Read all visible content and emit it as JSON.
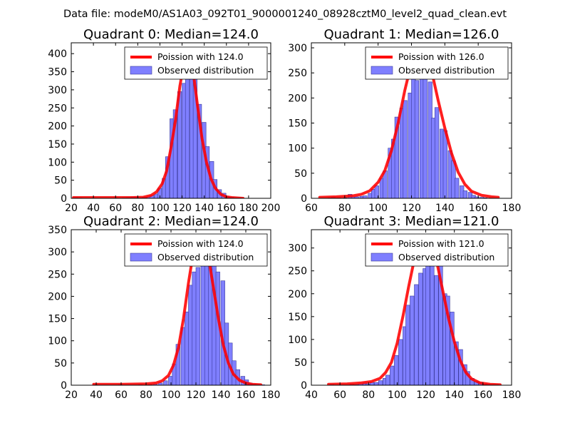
{
  "figure": {
    "suptitle": "Data file: modeM0/AS1A03_092T01_9000001240_08928cztM0_level2_quad_clean.evt"
  },
  "colors": {
    "bar_fill": "#7f7fff",
    "bar_edge": "#3a3a99",
    "fit_line": "#ff0000"
  },
  "chart_data": [
    {
      "type": "bar",
      "title": "Quadrant 0: Median=124.0",
      "legend": {
        "position": "upper-right",
        "entries": [
          "Poission with 124.0",
          "Observed distribution"
        ]
      },
      "xlim": [
        20,
        200
      ],
      "ylim": [
        0,
        430
      ],
      "xticks": [
        20,
        40,
        60,
        80,
        100,
        120,
        140,
        160,
        180,
        200
      ],
      "yticks": [
        0,
        50,
        100,
        150,
        200,
        250,
        300,
        350,
        400
      ],
      "bin_width": 3.6,
      "bins_x": [
        22,
        26,
        30,
        34,
        38,
        42,
        46,
        50,
        54,
        58,
        62,
        66,
        70,
        74,
        77,
        80,
        84,
        88,
        91,
        95,
        98,
        102,
        105,
        109,
        112,
        116,
        120,
        123,
        127,
        130,
        134,
        138,
        141,
        145,
        148,
        152,
        156,
        159,
        163,
        166,
        170
      ],
      "bins_y": [
        2,
        1,
        0,
        0,
        0,
        0,
        0,
        0,
        0,
        1,
        0,
        1,
        2,
        4,
        4,
        1,
        3,
        4,
        8,
        12,
        28,
        55,
        115,
        220,
        245,
        295,
        318,
        405,
        360,
        336,
        260,
        210,
        143,
        102,
        52,
        24,
        14,
        6,
        3,
        1,
        1
      ],
      "fit_x": [
        22,
        40,
        60,
        75,
        85,
        92,
        97,
        102,
        106,
        110,
        114,
        118,
        122,
        124,
        127,
        130,
        134,
        138,
        142,
        146,
        150,
        155,
        160,
        165,
        170,
        175
      ],
      "fit_y": [
        2,
        2,
        2,
        2,
        3,
        8,
        18,
        40,
        75,
        140,
        215,
        310,
        380,
        395,
        385,
        350,
        255,
        165,
        100,
        55,
        28,
        11,
        4,
        2,
        1,
        0
      ],
      "bars_edge_shift": 1
    },
    {
      "type": "bar",
      "title": "Quadrant 1: Median=126.0",
      "legend": {
        "position": "upper-right",
        "entries": [
          "Poission with 126.0",
          "Observed distribution"
        ]
      },
      "xlim": [
        60,
        180
      ],
      "ylim": [
        0,
        310
      ],
      "xticks": [
        60,
        80,
        100,
        120,
        140,
        160,
        180
      ],
      "yticks": [
        0,
        50,
        100,
        150,
        200,
        250,
        300
      ],
      "bin_width": 2.4,
      "bins_x": [
        65,
        67,
        70,
        72,
        75,
        77,
        79,
        82,
        84,
        86,
        89,
        91,
        94,
        96,
        98,
        101,
        103,
        106,
        108,
        110,
        113,
        115,
        118,
        120,
        122,
        125,
        127,
        130,
        132,
        134,
        137,
        139,
        142,
        144,
        146,
        149,
        151,
        154,
        156,
        158,
        161,
        163,
        166,
        168
      ],
      "bins_y": [
        0,
        0,
        1,
        2,
        1,
        0,
        1,
        8,
        3,
        3,
        4,
        5,
        10,
        18,
        25,
        40,
        55,
        100,
        118,
        162,
        180,
        195,
        210,
        272,
        235,
        240,
        300,
        232,
        160,
        181,
        138,
        135,
        95,
        75,
        40,
        25,
        15,
        12,
        6,
        3,
        2,
        1,
        0,
        0
      ],
      "fit_x": [
        65,
        75,
        85,
        90,
        95,
        100,
        104,
        108,
        112,
        116,
        120,
        124,
        126,
        128,
        132,
        136,
        140,
        144,
        148,
        152,
        156,
        162,
        168,
        172
      ],
      "fit_y": [
        2,
        3,
        5,
        8,
        15,
        32,
        55,
        95,
        150,
        215,
        270,
        295,
        298,
        295,
        255,
        195,
        140,
        90,
        52,
        28,
        14,
        6,
        3,
        2
      ],
      "bars_edge_shift": 1
    },
    {
      "type": "bar",
      "title": "Quadrant 2: Median=124.0",
      "legend": {
        "position": "upper-right",
        "entries": [
          "Poission with 124.0",
          "Observed distribution"
        ]
      },
      "xlim": [
        20,
        180
      ],
      "ylim": [
        0,
        350
      ],
      "xticks": [
        20,
        40,
        60,
        80,
        100,
        120,
        140,
        160,
        180
      ],
      "yticks": [
        0,
        50,
        100,
        150,
        200,
        250,
        300,
        350
      ],
      "bin_width": 3.2,
      "bins_x": [
        38,
        42,
        46,
        50,
        54,
        58,
        62,
        66,
        70,
        74,
        78,
        82,
        86,
        90,
        94,
        98,
        101,
        104,
        108,
        111,
        114,
        117,
        120,
        124,
        127,
        130,
        133,
        136,
        140,
        143,
        146,
        149,
        152,
        156,
        159,
        162,
        165,
        168,
        172
      ],
      "bins_y": [
        1,
        0,
        0,
        0,
        0,
        1,
        0,
        0,
        0,
        1,
        0,
        1,
        2,
        5,
        10,
        20,
        48,
        92,
        130,
        165,
        225,
        255,
        265,
        278,
        290,
        330,
        300,
        255,
        235,
        140,
        95,
        55,
        35,
        20,
        12,
        5,
        2,
        1,
        1
      ],
      "fit_x": [
        38,
        60,
        80,
        88,
        93,
        98,
        102,
        106,
        110,
        114,
        118,
        122,
        124,
        126,
        130,
        134,
        138,
        142,
        146,
        150,
        155,
        160,
        165,
        172
      ],
      "fit_y": [
        2,
        2,
        3,
        5,
        10,
        22,
        45,
        85,
        150,
        230,
        300,
        332,
        335,
        330,
        290,
        220,
        150,
        90,
        50,
        25,
        11,
        5,
        2,
        1
      ],
      "bars_edge_shift": 0
    },
    {
      "type": "bar",
      "title": "Quadrant 3: Median=121.0",
      "legend": {
        "position": "upper-right",
        "entries": [
          "Poission with 121.0",
          "Observed distribution"
        ]
      },
      "xlim": [
        40,
        180
      ],
      "ylim": [
        0,
        340
      ],
      "xticks": [
        40,
        60,
        80,
        100,
        120,
        140,
        160,
        180
      ],
      "yticks": [
        0,
        50,
        100,
        150,
        200,
        250,
        300
      ],
      "bin_width": 2.8,
      "bins_x": [
        53,
        56,
        59,
        62,
        64,
        67,
        70,
        73,
        76,
        78,
        81,
        84,
        87,
        90,
        92,
        95,
        98,
        101,
        104,
        106,
        109,
        112,
        115,
        118,
        120,
        123,
        126,
        129,
        132,
        134,
        137,
        140,
        143,
        146,
        148,
        151,
        154,
        157,
        160,
        162,
        165,
        168,
        171
      ],
      "bins_y": [
        1,
        0,
        0,
        0,
        0,
        2,
        1,
        3,
        5,
        3,
        6,
        6,
        10,
        15,
        22,
        42,
        65,
        100,
        128,
        175,
        195,
        220,
        245,
        255,
        300,
        290,
        240,
        275,
        200,
        195,
        160,
        95,
        78,
        45,
        30,
        15,
        8,
        6,
        3,
        2,
        1,
        1,
        0
      ],
      "fit_x": [
        52,
        65,
        75,
        82,
        88,
        92,
        96,
        100,
        104,
        108,
        112,
        116,
        120,
        122,
        124,
        128,
        132,
        136,
        140,
        144,
        148,
        152,
        158,
        165,
        172
      ],
      "fit_y": [
        2,
        3,
        5,
        8,
        15,
        28,
        50,
        92,
        150,
        215,
        275,
        305,
        310,
        308,
        300,
        265,
        205,
        145,
        95,
        55,
        28,
        14,
        5,
        2,
        1
      ],
      "bars_edge_shift": 0
    }
  ]
}
